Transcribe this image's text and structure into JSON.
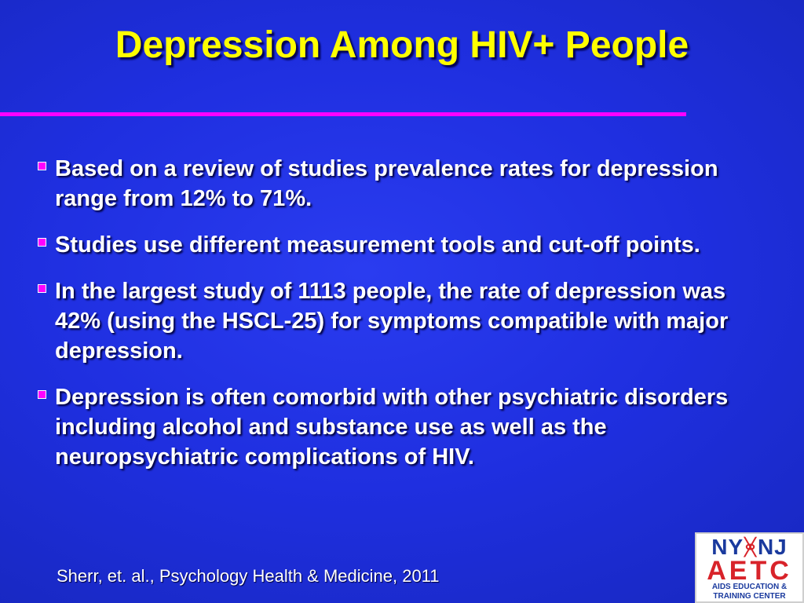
{
  "slide": {
    "title": "Depression Among HIV+ People",
    "bullets": [
      "Based on a review of studies prevalence rates for depression range from 12% to 71%.",
      "Studies use different measurement tools and cut-off points.",
      "In the largest study of 1113 people, the rate of depression was 42% (using the HSCL-25) for symptoms compatible with major depression.",
      "Depression is often comorbid with other psychiatric disorders including alcohol and  substance use as well as the neuropsychiatric complications of HIV."
    ],
    "citation": "Sherr, et. al., Psychology Health & Medicine, 2011"
  },
  "logo": {
    "left_text": "NY",
    "ribbon_glyph": "ᚸ",
    "right_text": "NJ",
    "acronym": "AETC",
    "line1": "AIDS EDUCATION &",
    "line2": "TRAINING CENTER"
  },
  "colors": {
    "background": "#1f2fe0",
    "title": "#ffff00",
    "rule": "#ff00ff",
    "bullet_marker": "#ff00ff",
    "text": "#ffffff"
  }
}
